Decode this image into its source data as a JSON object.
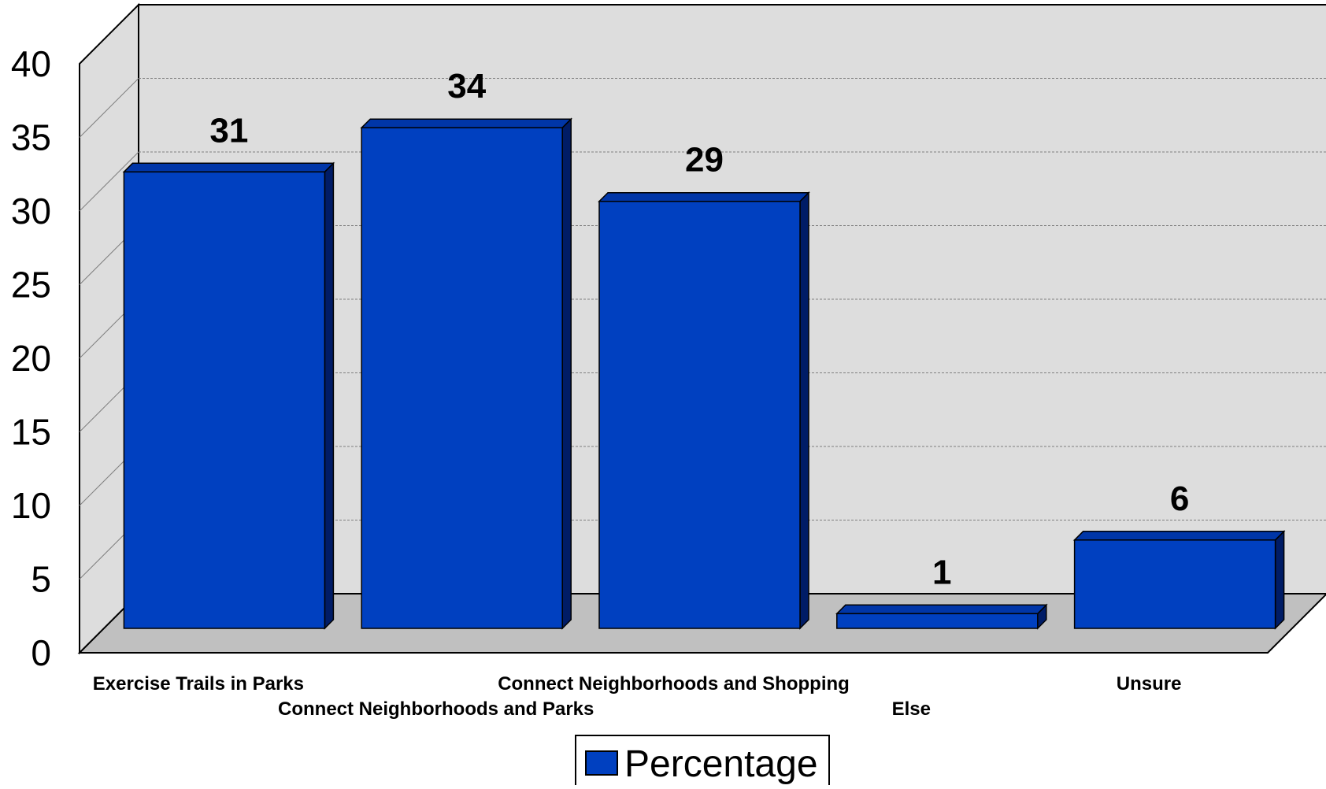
{
  "chart_data": {
    "type": "bar",
    "categories": [
      "Exercise Trails in Parks",
      "Connect Neighborhoods and Parks",
      "Connect Neighborhoods and Shopping",
      "Else",
      "Unsure"
    ],
    "series": [
      {
        "name": "Percentage",
        "values": [
          31,
          34,
          29,
          1,
          6
        ]
      }
    ],
    "data_labels": [
      "31",
      "34",
      "29",
      "1",
      "6"
    ],
    "yticks": [
      "0",
      "5",
      "10",
      "15",
      "20",
      "25",
      "30",
      "35",
      "40"
    ],
    "ylim": [
      0,
      40
    ],
    "grid": true,
    "three_d": true,
    "legend": {
      "position": "bottom",
      "label": "Percentage"
    },
    "colors": {
      "bar_front": "#0040C0",
      "bar_top": "#0036A8",
      "bar_side": "#001C66",
      "wall": "#DDDDDD",
      "floor": "#C0C0C0",
      "gridline": "#808080"
    }
  }
}
